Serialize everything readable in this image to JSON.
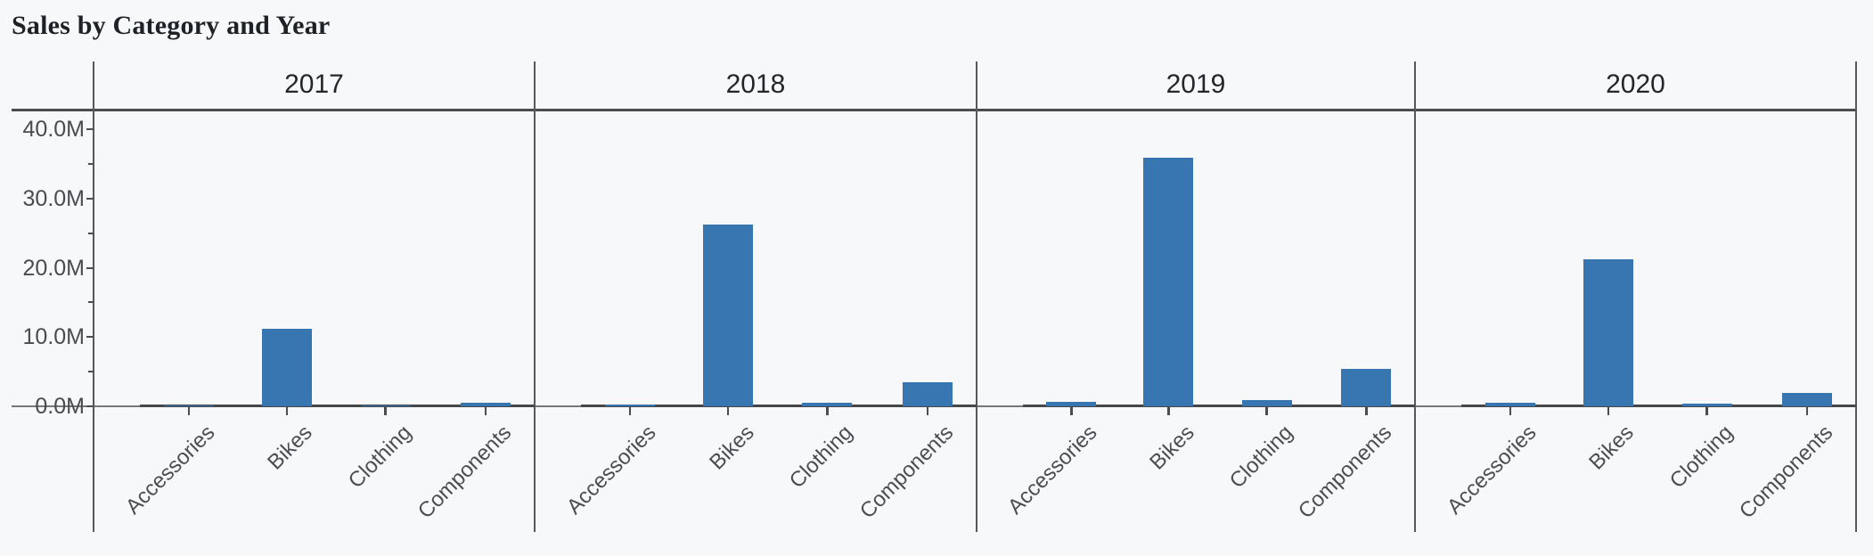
{
  "title": "Sales by Category and Year",
  "y_axis": {
    "tick_labels_top_to_bottom": [
      "40.0M",
      "30.0M",
      "20.0M",
      "10.0M",
      "0.0M"
    ],
    "minor_tick_values_M": [
      5,
      15,
      25,
      35
    ]
  },
  "colors": {
    "bar": "#3776b0",
    "background": "#f6f8fa",
    "strong_line": "#4c4c50",
    "divider_line": "#58585b",
    "label_gray": "#4b4b4f",
    "label_dark": "#24262b"
  },
  "chart_data": {
    "type": "bar",
    "title": "Sales by Category and Year",
    "facet_field": "Year",
    "facet_labels": [
      "2017",
      "2018",
      "2019",
      "2020"
    ],
    "categories": [
      "Accessories",
      "Bikes",
      "Clothing",
      "Components"
    ],
    "series": [
      {
        "name": "2017",
        "values": [
          0.1,
          11.2,
          0.1,
          0.55
        ]
      },
      {
        "name": "2018",
        "values": [
          0.25,
          26.3,
          0.5,
          3.5
        ]
      },
      {
        "name": "2019",
        "values": [
          0.65,
          35.9,
          0.9,
          5.4
        ]
      },
      {
        "name": "2020",
        "values": [
          0.5,
          21.2,
          0.45,
          1.95
        ]
      }
    ],
    "value_unit": "M",
    "ylim": [
      0,
      40
    ],
    "y_tick_step_M": 10,
    "y_minor_tick_step_M": 5,
    "grid": false,
    "legend": "none",
    "x_label_angle_deg": -45
  }
}
